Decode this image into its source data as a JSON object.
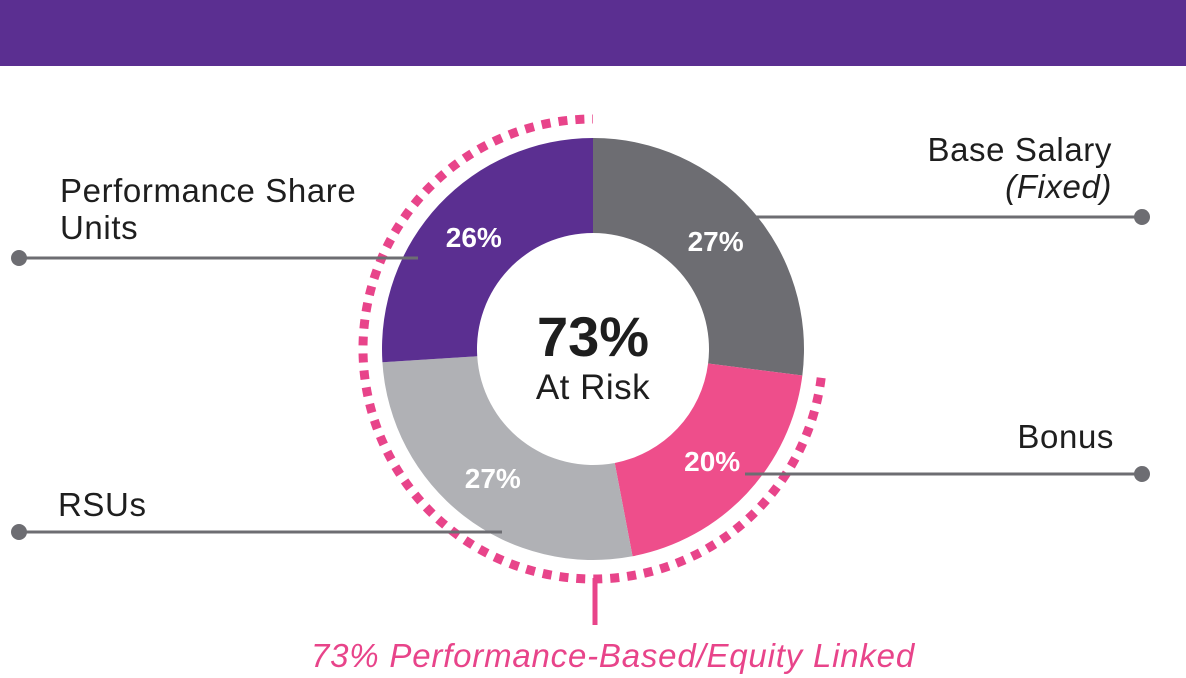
{
  "chart_data": {
    "type": "pie",
    "variant": "donut",
    "slices": [
      {
        "name": "Base Salary",
        "note": "(Fixed)",
        "value": 27,
        "label": "27%",
        "color": "#6d6d72"
      },
      {
        "name": "Bonus",
        "note": "",
        "value": 20,
        "label": "20%",
        "color": "#ee4e8b"
      },
      {
        "name": "RSUs",
        "note": "",
        "value": 27,
        "label": "27%",
        "color": "#b0b1b5"
      },
      {
        "name": "Performance Share Units",
        "note": "",
        "value": 26,
        "label": "26%",
        "color": "#5b2f91"
      }
    ],
    "center_value": "73%",
    "center_label": "At Risk",
    "footer": "73% Performance-Based/Equity Linked",
    "highlight_color": "#e8448a",
    "highlight_range": [
      "Bonus",
      "Performance Share Units"
    ]
  },
  "labels": {
    "base_salary": "Base Salary",
    "base_salary_sub": "(Fixed)",
    "psu_line1": "Performance Share",
    "psu_line2": "Units",
    "bonus": "Bonus",
    "rsus": "RSUs"
  },
  "banner_color": "#5b2f91"
}
